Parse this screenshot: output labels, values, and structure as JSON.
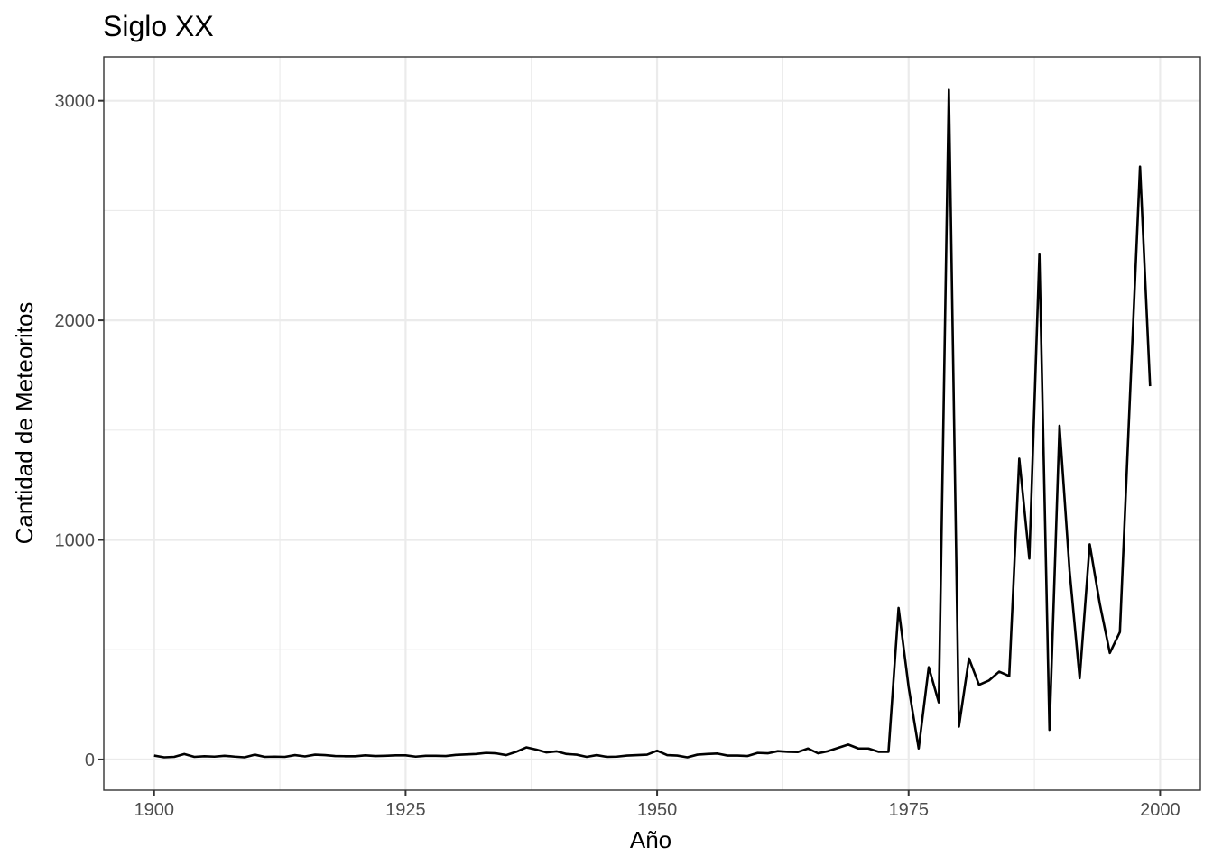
{
  "chart_data": {
    "type": "line",
    "title": "Siglo XX",
    "xlabel": "Año",
    "ylabel": "Cantidad de Meteoritos",
    "xlim": [
      1895,
      2004
    ],
    "ylim": [
      -140,
      3200
    ],
    "x_ticks": [
      1900,
      1925,
      1950,
      1975,
      2000
    ],
    "y_ticks": [
      0,
      1000,
      2000,
      3000
    ],
    "x_minor_ticks": [
      1912.5,
      1937.5,
      1962.5,
      1987.5
    ],
    "y_minor_ticks": [
      500,
      1500,
      2500
    ],
    "grid": true,
    "legend": "none",
    "line_color": "#000000",
    "x": [
      1900,
      1901,
      1902,
      1903,
      1904,
      1905,
      1906,
      1907,
      1908,
      1909,
      1910,
      1911,
      1912,
      1913,
      1914,
      1915,
      1916,
      1917,
      1918,
      1919,
      1920,
      1921,
      1922,
      1923,
      1924,
      1925,
      1926,
      1927,
      1928,
      1929,
      1930,
      1931,
      1932,
      1933,
      1934,
      1935,
      1936,
      1937,
      1938,
      1939,
      1940,
      1941,
      1942,
      1943,
      1944,
      1945,
      1946,
      1947,
      1948,
      1949,
      1950,
      1951,
      1952,
      1953,
      1954,
      1955,
      1956,
      1957,
      1958,
      1959,
      1960,
      1961,
      1962,
      1963,
      1964,
      1965,
      1966,
      1967,
      1968,
      1969,
      1970,
      1971,
      1972,
      1973,
      1974,
      1975,
      1976,
      1977,
      1978,
      1979,
      1980,
      1981,
      1982,
      1983,
      1984,
      1985,
      1986,
      1987,
      1988,
      1989,
      1990,
      1991,
      1992,
      1993,
      1994,
      1995,
      1996,
      1997,
      1998,
      1999
    ],
    "y": [
      18,
      10,
      12,
      25,
      12,
      15,
      13,
      17,
      13,
      10,
      22,
      12,
      13,
      12,
      20,
      14,
      22,
      20,
      16,
      15,
      15,
      19,
      16,
      17,
      19,
      19,
      13,
      17,
      17,
      16,
      21,
      23,
      25,
      30,
      28,
      20,
      35,
      55,
      45,
      32,
      37,
      25,
      22,
      12,
      20,
      12,
      13,
      18,
      20,
      22,
      40,
      20,
      18,
      10,
      22,
      25,
      27,
      18,
      18,
      16,
      30,
      28,
      38,
      35,
      34,
      50,
      28,
      38,
      53,
      68,
      50,
      50,
      35,
      35,
      690,
      330,
      50,
      420,
      260,
      3050,
      150,
      460,
      340,
      360,
      400,
      380,
      1370,
      915,
      2300,
      135,
      1520,
      860,
      370,
      980,
      710,
      485,
      580,
      1650,
      2700,
      1700
    ]
  }
}
